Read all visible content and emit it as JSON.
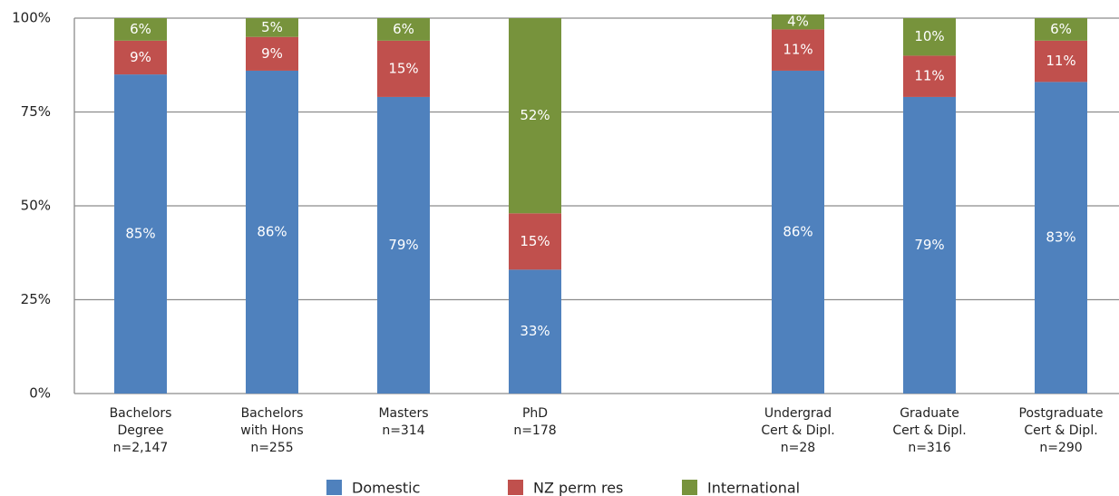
{
  "chart_data": {
    "type": "stacked_bar",
    "categories": [
      [
        "Bachelors",
        "Degree",
        "n=2,147"
      ],
      [
        "Bachelors",
        "with Hons",
        "n=255"
      ],
      [
        "Masters",
        "n=314"
      ],
      [
        "PhD",
        "n=178"
      ],
      null,
      [
        "Undergrad",
        "Cert & Dipl.",
        "n=28"
      ],
      [
        "Graduate",
        "Cert & Dipl.",
        "n=316"
      ],
      [
        "Postgraduate",
        "Cert & Dipl.",
        "n=290"
      ]
    ],
    "series": [
      {
        "name": "Domestic",
        "color": "#4f81bd",
        "values": [
          85,
          86,
          79,
          33,
          null,
          86,
          79,
          83
        ],
        "value_labels": [
          "85%",
          "86%",
          "79%",
          "33%",
          null,
          "86%",
          "79%",
          "83%"
        ]
      },
      {
        "name": "NZ perm res",
        "color": "#c0504d",
        "values": [
          9,
          9,
          15,
          15,
          null,
          11,
          11,
          11
        ],
        "value_labels": [
          "9%",
          "9%",
          "15%",
          "15%",
          null,
          "11%",
          "11%",
          "11%"
        ]
      },
      {
        "name": "International",
        "color": "#77933c",
        "values": [
          6,
          5,
          6,
          52,
          null,
          4,
          10,
          6
        ],
        "value_labels": [
          "6%",
          "5%",
          "6%",
          "52%",
          null,
          "4%",
          "10%",
          "6%"
        ]
      }
    ],
    "ylim": [
      0,
      100
    ],
    "yticks": [
      {
        "value": 0,
        "label": "0%"
      },
      {
        "value": 25,
        "label": "25%"
      },
      {
        "value": 50,
        "label": "50%"
      },
      {
        "value": 75,
        "label": "75%"
      },
      {
        "value": 100,
        "label": "100%"
      }
    ],
    "grid": true,
    "legend": "bottom"
  }
}
